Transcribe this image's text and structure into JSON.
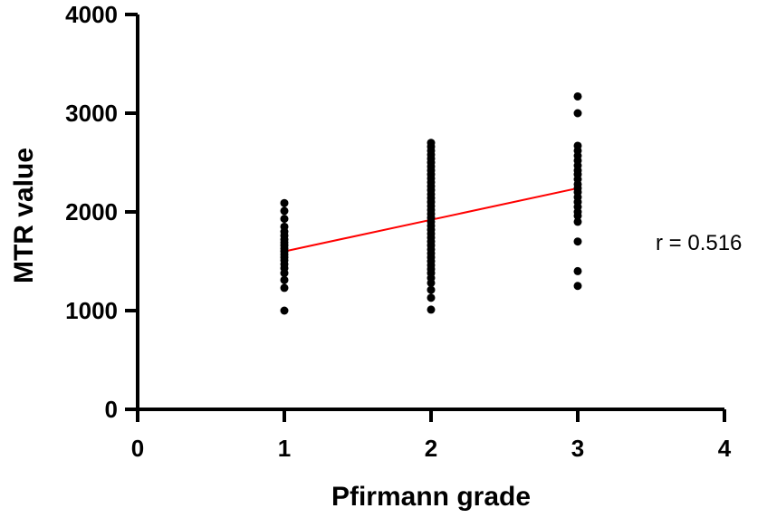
{
  "chart_data": {
    "type": "scatter",
    "xlabel": "Pfirmann grade",
    "ylabel": "MTR value",
    "xlim": [
      0,
      4
    ],
    "ylim": [
      0,
      4000
    ],
    "x_ticks": [
      "0",
      "1",
      "2",
      "3",
      "4"
    ],
    "y_ticks": [
      "0",
      "1000",
      "2000",
      "3000",
      "4000"
    ],
    "grid": false,
    "annotation": "r = 0.516",
    "colors": {
      "points": "#000000",
      "fit_line": "#ff0000"
    },
    "points": [
      {
        "x": 1,
        "y": 1000
      },
      {
        "x": 1,
        "y": 1230
      },
      {
        "x": 1,
        "y": 1310
      },
      {
        "x": 1,
        "y": 1380
      },
      {
        "x": 1,
        "y": 1430
      },
      {
        "x": 1,
        "y": 1470
      },
      {
        "x": 1,
        "y": 1510
      },
      {
        "x": 1,
        "y": 1540
      },
      {
        "x": 1,
        "y": 1570
      },
      {
        "x": 1,
        "y": 1600
      },
      {
        "x": 1,
        "y": 1630
      },
      {
        "x": 1,
        "y": 1660
      },
      {
        "x": 1,
        "y": 1690
      },
      {
        "x": 1,
        "y": 1720
      },
      {
        "x": 1,
        "y": 1760
      },
      {
        "x": 1,
        "y": 1800
      },
      {
        "x": 1,
        "y": 1850
      },
      {
        "x": 1,
        "y": 1930
      },
      {
        "x": 1,
        "y": 2010
      },
      {
        "x": 1,
        "y": 2090
      },
      {
        "x": 2,
        "y": 1010
      },
      {
        "x": 2,
        "y": 1130
      },
      {
        "x": 2,
        "y": 1210
      },
      {
        "x": 2,
        "y": 1280
      },
      {
        "x": 2,
        "y": 1330
      },
      {
        "x": 2,
        "y": 1380
      },
      {
        "x": 2,
        "y": 1420
      },
      {
        "x": 2,
        "y": 1460
      },
      {
        "x": 2,
        "y": 1500
      },
      {
        "x": 2,
        "y": 1540
      },
      {
        "x": 2,
        "y": 1580
      },
      {
        "x": 2,
        "y": 1620
      },
      {
        "x": 2,
        "y": 1660
      },
      {
        "x": 2,
        "y": 1700
      },
      {
        "x": 2,
        "y": 1740
      },
      {
        "x": 2,
        "y": 1780
      },
      {
        "x": 2,
        "y": 1820
      },
      {
        "x": 2,
        "y": 1860
      },
      {
        "x": 2,
        "y": 1900
      },
      {
        "x": 2,
        "y": 1940
      },
      {
        "x": 2,
        "y": 1980
      },
      {
        "x": 2,
        "y": 2020
      },
      {
        "x": 2,
        "y": 2060
      },
      {
        "x": 2,
        "y": 2100
      },
      {
        "x": 2,
        "y": 2140
      },
      {
        "x": 2,
        "y": 2180
      },
      {
        "x": 2,
        "y": 2220
      },
      {
        "x": 2,
        "y": 2260
      },
      {
        "x": 2,
        "y": 2300
      },
      {
        "x": 2,
        "y": 2340
      },
      {
        "x": 2,
        "y": 2380
      },
      {
        "x": 2,
        "y": 2420
      },
      {
        "x": 2,
        "y": 2460
      },
      {
        "x": 2,
        "y": 2500
      },
      {
        "x": 2,
        "y": 2540
      },
      {
        "x": 2,
        "y": 2580
      },
      {
        "x": 2,
        "y": 2620
      },
      {
        "x": 2,
        "y": 2660
      },
      {
        "x": 2,
        "y": 2700
      },
      {
        "x": 3,
        "y": 1250
      },
      {
        "x": 3,
        "y": 1400
      },
      {
        "x": 3,
        "y": 1700
      },
      {
        "x": 3,
        "y": 1900
      },
      {
        "x": 3,
        "y": 1960
      },
      {
        "x": 3,
        "y": 2000
      },
      {
        "x": 3,
        "y": 2050
      },
      {
        "x": 3,
        "y": 2100
      },
      {
        "x": 3,
        "y": 2150
      },
      {
        "x": 3,
        "y": 2200
      },
      {
        "x": 3,
        "y": 2240
      },
      {
        "x": 3,
        "y": 2280
      },
      {
        "x": 3,
        "y": 2330
      },
      {
        "x": 3,
        "y": 2380
      },
      {
        "x": 3,
        "y": 2420
      },
      {
        "x": 3,
        "y": 2470
      },
      {
        "x": 3,
        "y": 2520
      },
      {
        "x": 3,
        "y": 2570
      },
      {
        "x": 3,
        "y": 2620
      },
      {
        "x": 3,
        "y": 2670
      },
      {
        "x": 3,
        "y": 3000
      },
      {
        "x": 3,
        "y": 3170
      }
    ],
    "fit_line": {
      "x": [
        1,
        3
      ],
      "y": [
        1600,
        2240
      ]
    }
  }
}
